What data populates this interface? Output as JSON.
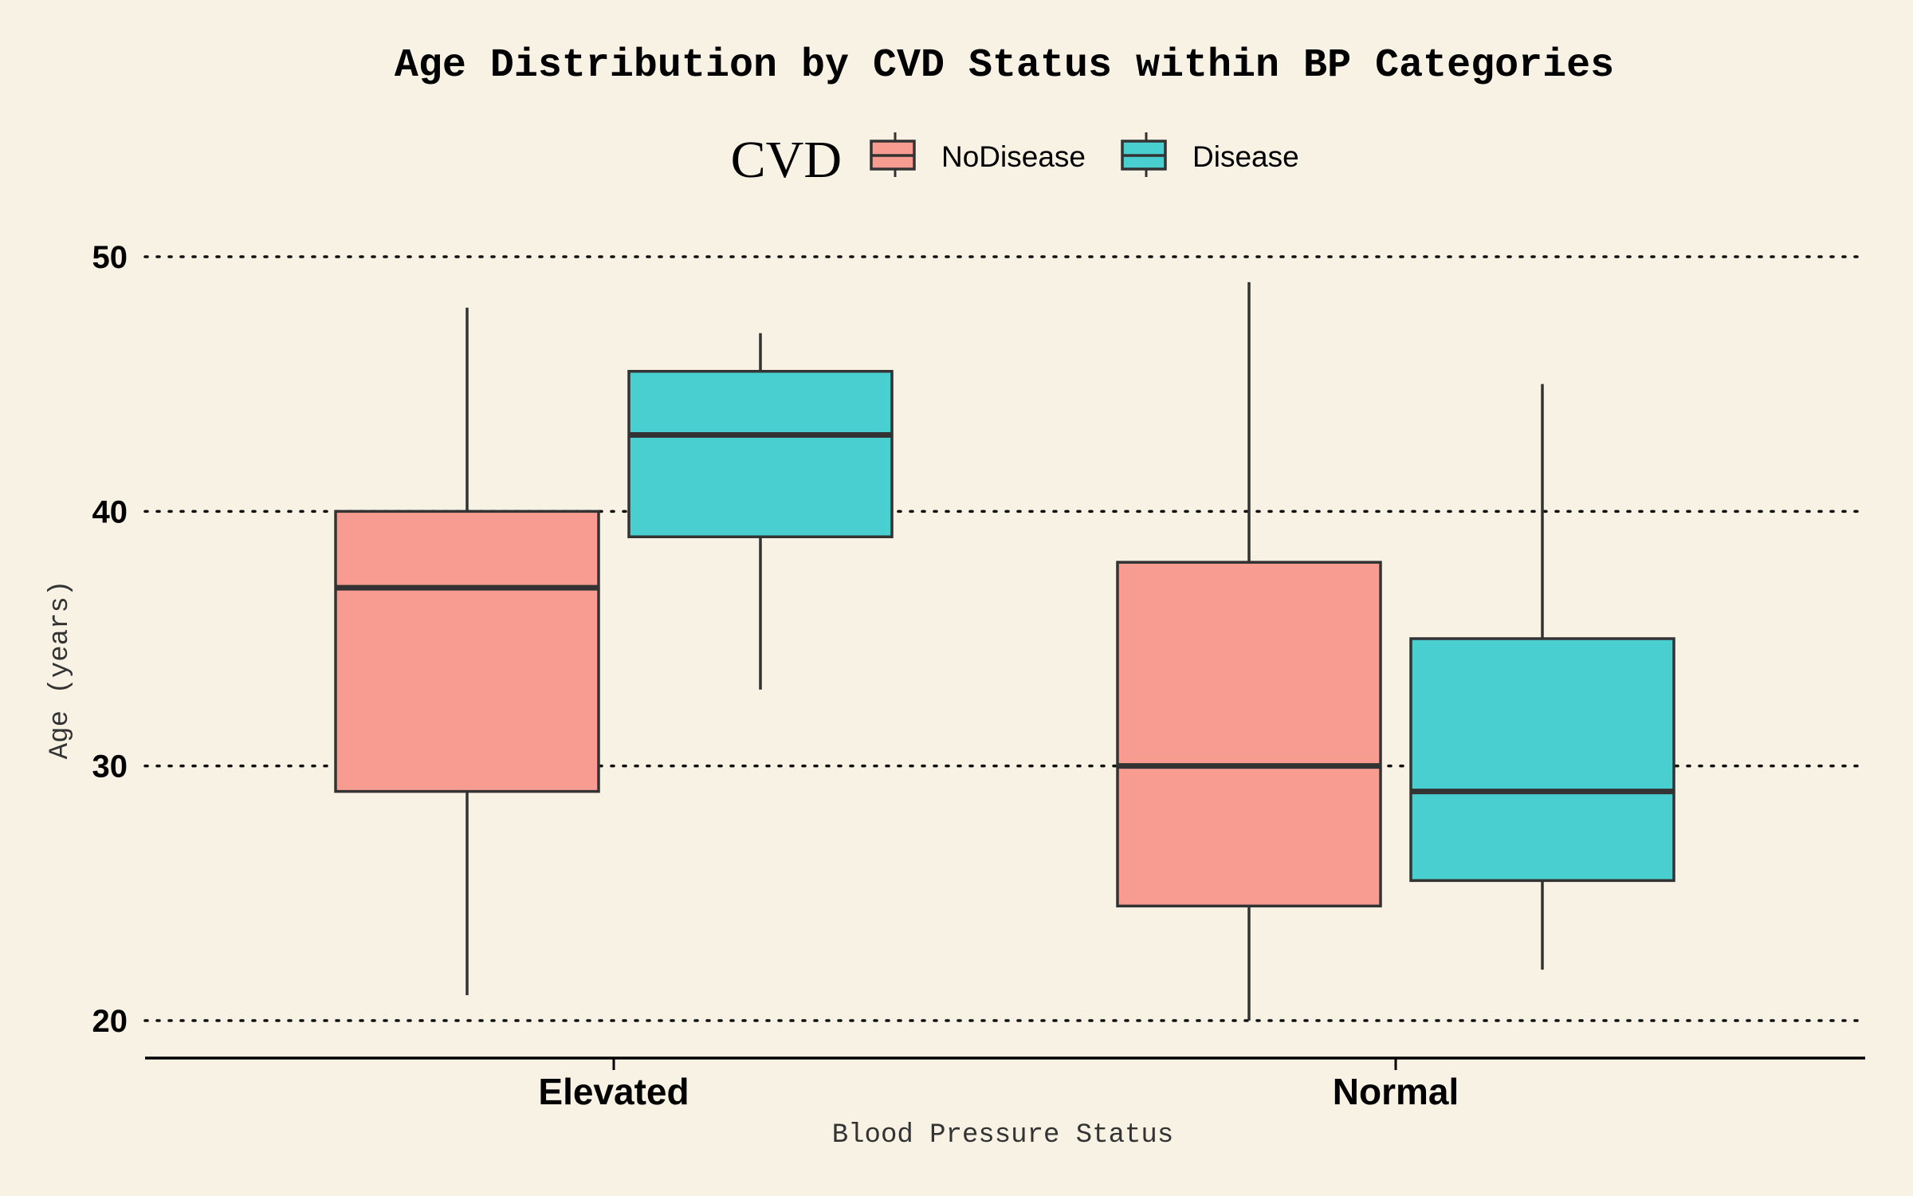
{
  "chart_data": {
    "type": "box",
    "title": "Age Distribution by CVD Status within BP Categories",
    "xlabel": "Blood Pressure Status",
    "ylabel": "Age (years)",
    "ylim": [
      18.5,
      51
    ],
    "yticks": [
      20,
      30,
      40,
      50
    ],
    "grid": "horizontal dotted",
    "legend": {
      "title": "CVD",
      "placement": "top-center"
    },
    "categories": [
      "Elevated",
      "Normal"
    ],
    "series": [
      {
        "name": "NoDisease",
        "color": "#F89C92",
        "boxes": [
          {
            "category": "Elevated",
            "min": 21,
            "q1": 29,
            "median": 37,
            "q3": 40,
            "max": 48
          },
          {
            "category": "Normal",
            "min": 20,
            "q1": 24.5,
            "median": 30,
            "q3": 38,
            "max": 49
          }
        ]
      },
      {
        "name": "Disease",
        "color": "#4ACFD0",
        "boxes": [
          {
            "category": "Elevated",
            "min": 33,
            "q1": 39,
            "median": 43,
            "q3": 45.5,
            "max": 47
          },
          {
            "category": "Normal",
            "min": 22,
            "q1": 25.5,
            "median": 29,
            "q3": 35,
            "max": 45
          }
        ]
      }
    ]
  }
}
